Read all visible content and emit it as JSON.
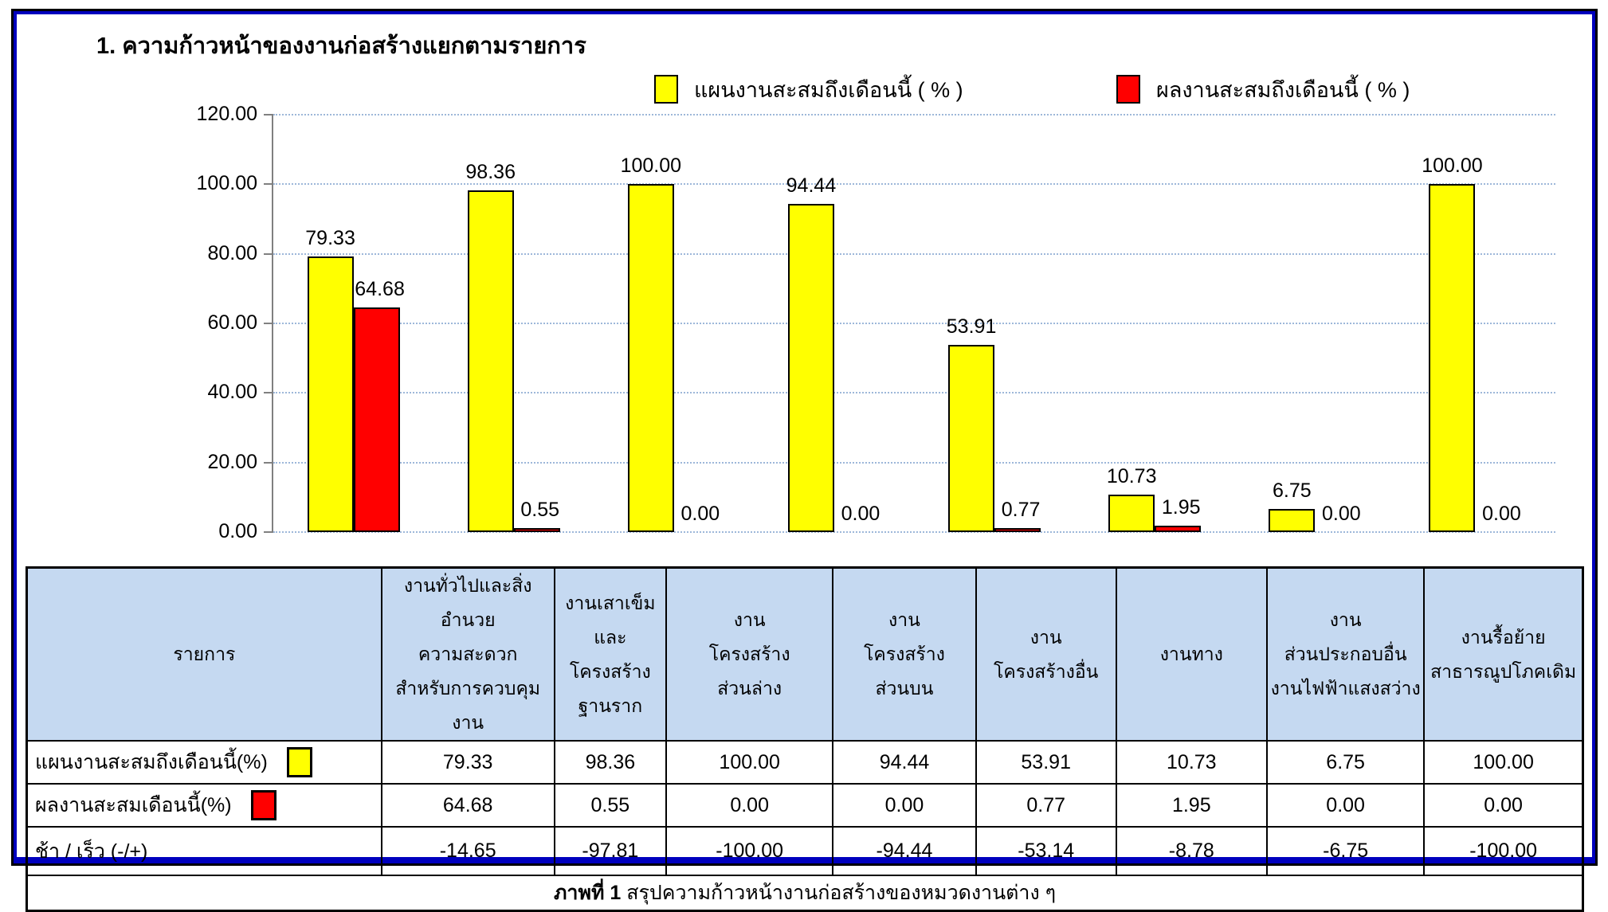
{
  "title": "1. ความก้าวหน้าของงานก่อสร้างแยกตามรายการ",
  "legend": [
    {
      "label": "แผนงานสะสมถึงเดือนนี้ ( % )",
      "color": "#FFFF00"
    },
    {
      "label": "ผลงานสะสมถึงเดือนนี้ ( % )",
      "color": "#FF0000"
    }
  ],
  "chart_data": {
    "type": "bar",
    "title": "1. ความก้าวหน้าของงานก่อสร้างแยกตามรายการ",
    "categories": [
      "งานทั่วไปและสิ่งอำนวยความสะดวกสำหรับการควบคุมงาน",
      "งานเสาเข็มและโครงสร้างฐานราก",
      "งานโครงสร้างส่วนล่าง",
      "งานโครงสร้างส่วนบน",
      "งานโครงสร้างอื่น",
      "งานทาง",
      "งานส่วนประกอบอื่น งานไฟฟ้าแสงสว่าง",
      "งานรื้อย้ายสาธารณูปโภคเดิม"
    ],
    "series": [
      {
        "name": "แผนงานสะสมถึงเดือนนี้ ( % )",
        "color": "#FFFF00",
        "values": [
          79.33,
          98.36,
          100.0,
          94.44,
          53.91,
          10.73,
          6.75,
          100.0
        ],
        "labels": [
          "79.33",
          "98.36",
          "100.00",
          "94.44",
          "53.91",
          "10.73",
          "6.75",
          "100.00"
        ]
      },
      {
        "name": "ผลงานสะสมถึงเดือนนี้ ( % )",
        "color": "#FF0000",
        "values": [
          64.68,
          0.55,
          0.0,
          0.0,
          0.77,
          1.95,
          0.0,
          0.0
        ],
        "labels": [
          "64.68",
          "0.55",
          "0.00",
          "0.00",
          "0.77",
          "1.95",
          "0.00",
          "0.00"
        ]
      }
    ],
    "ylim": [
      0,
      120
    ],
    "yticks": [
      "120.00",
      "100.00",
      "80.00",
      "60.00",
      "40.00",
      "20.00",
      "0.00"
    ],
    "grid": true,
    "legend_position": "top",
    "gridline_color": "#9DB7D9",
    "axis_color": "#808080"
  },
  "table": {
    "header_col0": "รายการ",
    "columns": [
      "งานทั่วไปและสิ่งอำนวย\nความสะดวก\nสำหรับการควบคุมงาน",
      "งานเสาเข็ม\nและโครงสร้าง\nฐานราก",
      "งาน\nโครงสร้าง\nส่วนล่าง",
      "งาน\nโครงสร้าง\nส่วนบน",
      "งาน\nโครงสร้างอื่น",
      "งานทาง",
      "งาน\nส่วนประกอบอื่น\nงานไฟฟ้าแสงสว่าง",
      "งานรื้อย้าย\nสาธารณูปโภคเดิม"
    ],
    "col_widths_pct": [
      22.8,
      11.1,
      7.2,
      10.7,
      9.2,
      9.0,
      9.7,
      10.1,
      10.2
    ],
    "rows": [
      {
        "label": "แผนงานสะสมถึงเดือนนี้(%)",
        "swatch": "#FFFF00",
        "values": [
          "79.33",
          "98.36",
          "100.00",
          "94.44",
          "53.91",
          "10.73",
          "6.75",
          "100.00"
        ]
      },
      {
        "label": "ผลงานสะสมเดือนนี้(%)",
        "swatch": "#FF0000",
        "values": [
          "64.68",
          "0.55",
          "0.00",
          "0.00",
          "0.77",
          "1.95",
          "0.00",
          "0.00"
        ]
      },
      {
        "label": "ช้า / เร็ว  (-/+)",
        "swatch": null,
        "values": [
          "-14.65",
          "-97.81",
          "-100.00",
          "-94.44",
          "-53.14",
          "-8.78",
          "-6.75",
          "-100.00"
        ]
      }
    ],
    "caption_bold": "ภาพที่ 1",
    "caption_rest": " สรุปความก้าวหน้างานก่อสร้างของหมวดงานต่าง ๆ"
  },
  "colors": {
    "plan_bar": "#FFFF00",
    "actual_bar": "#FF0000",
    "header_bg": "#C5D9F1",
    "frame_blue": "#0000BE",
    "gridline": "#9DB7D9"
  }
}
